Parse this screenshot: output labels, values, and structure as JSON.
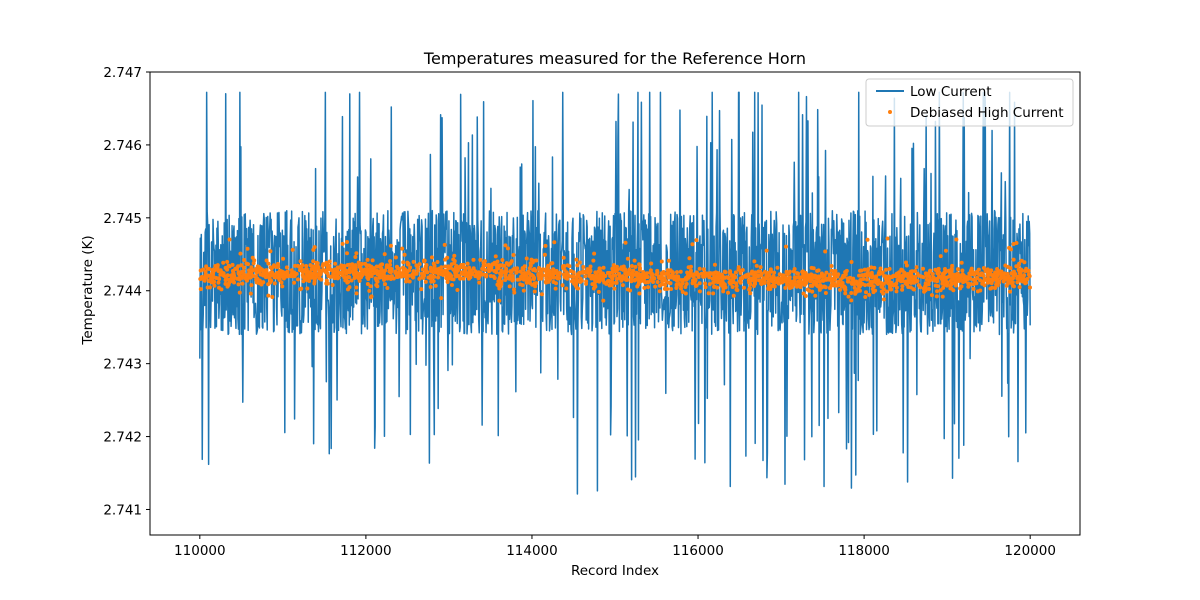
{
  "chart_data": {
    "type": "line",
    "title": "Temperatures measured for the Reference Horn",
    "xlabel": "Record Index",
    "ylabel": "Temperature (K)",
    "xlim": [
      109400,
      120600
    ],
    "ylim": [
      2.74065,
      2.747
    ],
    "xticks": [
      110000,
      112000,
      114000,
      116000,
      118000,
      120000
    ],
    "xtick_labels": [
      "110000",
      "112000",
      "114000",
      "116000",
      "118000",
      "120000"
    ],
    "yticks": [
      2.741,
      2.742,
      2.743,
      2.744,
      2.745,
      2.746,
      2.747
    ],
    "ytick_labels": [
      "2.741",
      "2.742",
      "2.743",
      "2.744",
      "2.745",
      "2.746",
      "2.747"
    ],
    "legend_position": "upper right",
    "series": [
      {
        "name": "Low Current",
        "kind": "line",
        "color": "#1f77b4",
        "x_start": 110000,
        "x_end": 120000,
        "typical_range": [
          2.7434,
          2.7451
        ],
        "mean": 2.7443,
        "max": 2.74672,
        "min": 2.74097
      },
      {
        "name": "Debiased High Current",
        "kind": "scatter",
        "color": "#ff7f0e",
        "x_start": 110000,
        "x_end": 120000,
        "mean": 2.7442,
        "typical_range": [
          2.744,
          2.7444
        ],
        "max": 2.74477,
        "min": 2.74385
      }
    ],
    "legend": [
      "Low Current",
      "Debiased High Current"
    ]
  }
}
